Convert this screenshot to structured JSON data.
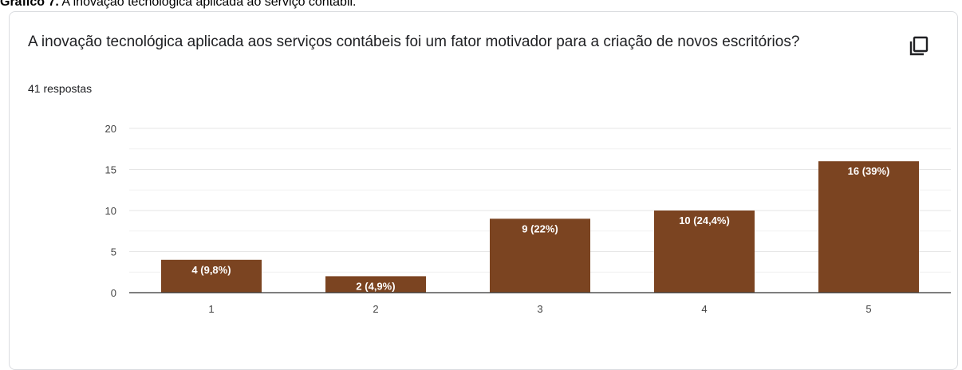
{
  "caption": {
    "prefix": "Gráfico 7.",
    "text": " A inovação tecnológica aplicada ao serviço contábil."
  },
  "card": {
    "question": "A inovação tecnológica aplicada aos serviços contábeis foi um fator motivador para a criação de novos escritórios?",
    "responses": "41 respostas",
    "copy_icon": "copy-icon"
  },
  "colors": {
    "bar": "#7b4421",
    "grid": "#e6e6e6",
    "axis": "#333333",
    "label": "#ffffff",
    "tick": "#444444"
  },
  "chart_data": {
    "type": "bar",
    "categories": [
      "1",
      "2",
      "3",
      "4",
      "5"
    ],
    "values": [
      4,
      2,
      9,
      10,
      16
    ],
    "data_labels": [
      "4 (9,8%)",
      "2 (4,9%)",
      "9 (22%)",
      "10 (24,4%)",
      "16 (39%)"
    ],
    "title": "A inovação tecnológica aplicada aos serviços contábeis foi um fator motivador para a criação de novos escritórios?",
    "xlabel": "",
    "ylabel": "",
    "ylim": [
      0,
      20
    ],
    "yticks": [
      0,
      5,
      10,
      15,
      20
    ],
    "grid": true,
    "legend": "none"
  }
}
